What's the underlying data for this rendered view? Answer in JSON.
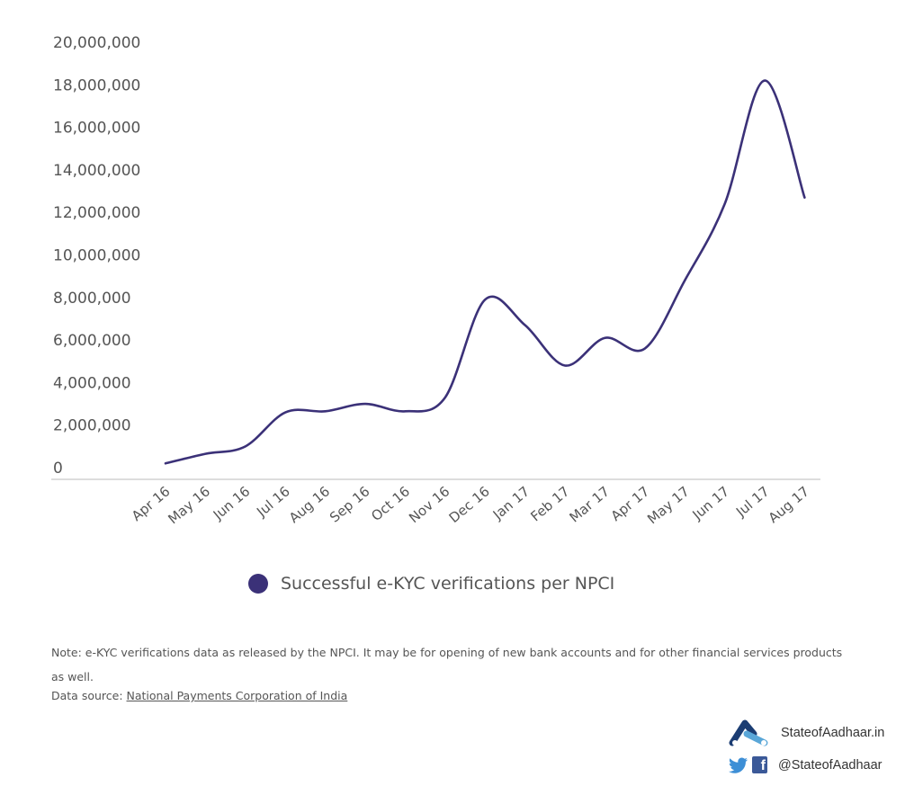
{
  "chart_data": {
    "type": "line",
    "categories": [
      "Apr 16",
      "May 16",
      "Jun 16",
      "Jul 16",
      "Aug 16",
      "Sep 16",
      "Oct 16",
      "Nov 16",
      "Dec 16",
      "Jan 17",
      "Feb 17",
      "Mar 17",
      "Apr 17",
      "May 17",
      "Jun 17",
      "Jul 17",
      "Aug 17"
    ],
    "series": [
      {
        "name": "Successful e-KYC verifications per NPCI",
        "values": [
          200000,
          650000,
          1000000,
          2600000,
          2650000,
          3000000,
          2650000,
          3300000,
          7900000,
          6700000,
          4800000,
          6100000,
          5600000,
          8800000,
          12400000,
          18200000,
          12700000
        ],
        "color": "#3b3178"
      }
    ],
    "yticks": [
      "20,000,000",
      "18,000,000",
      "16,000,000",
      "14,000,000",
      "12,000,000",
      "10,000,000",
      "8,000,000",
      "6,000,000",
      "4,000,000",
      "2,000,000",
      "0"
    ],
    "ylim": [
      0,
      20000000
    ],
    "grid": false,
    "legend_position": "bottom"
  },
  "legend": {
    "label": "Successful e-KYC verifications per NPCI"
  },
  "note": {
    "text": "Note: e-KYC verifications data as released by the NPCI. It may be for opening of new bank accounts and for other financial services products as well.",
    "source_prefix": "Data source: ",
    "source_link": "National Payments Corporation of India"
  },
  "branding": {
    "site": "StateofAadhaar.in",
    "handle": "@StateofAadhaar",
    "icons": [
      "aadhaar-logo-icon",
      "twitter-icon",
      "facebook-icon"
    ],
    "fb_glyph": "f"
  }
}
